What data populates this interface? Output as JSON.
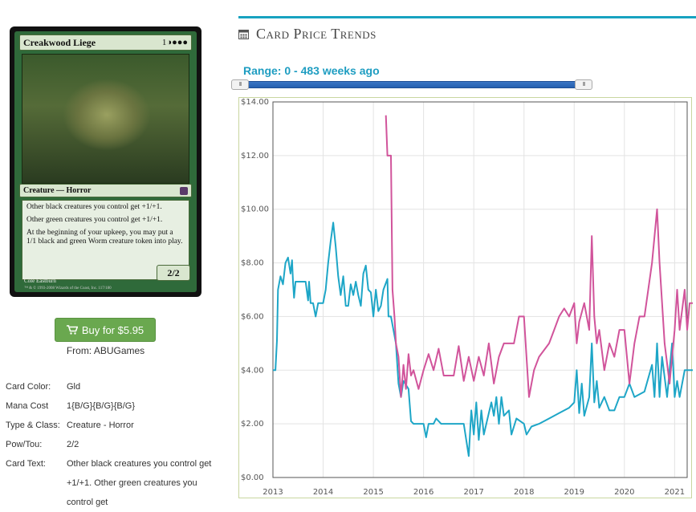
{
  "card": {
    "name": "Creakwood Liege",
    "mana_symbols": "1◑●●●",
    "type_line": "Creature — Horror",
    "rules": [
      "Other black creatures you control get +1/+1.",
      "Other green creatures you control get +1/+1.",
      "At the beginning of your upkeep, you may put a 1/1 black and green Worm creature token into play."
    ],
    "power_toughness": "2/2",
    "artist": "Cole Eastburn",
    "copyright": "™ & © 1993-2008 Wizards of the Coast, Inc. 117/180"
  },
  "buy": {
    "label": "Buy for $5.95",
    "icon": "cart-icon"
  },
  "from": {
    "prefix": "From:",
    "store": "ABUGames"
  },
  "details": [
    {
      "label": "Card Color:",
      "value": "Gld"
    },
    {
      "label": "Mana Cost",
      "value": "1{B/G}{B/G}{B/G}"
    },
    {
      "label": "Type & Class:",
      "value": "Creature - Horror"
    },
    {
      "label": "Pow/Tou:",
      "value": "2/2"
    },
    {
      "label": "Card Text:",
      "value": "Other black creatures you control get +1/+1. Other green creatures you control get"
    }
  ],
  "section": {
    "title": "Card Price Trends",
    "icon": "calendar-icon"
  },
  "range": {
    "label": "Range: 0 - 483 weeks ago",
    "start_weeks": 0,
    "end_weeks": 483
  },
  "chart_data": {
    "type": "line",
    "ylim": [
      0,
      14
    ],
    "y_ticks": [
      "$0.00",
      "$2.00",
      "$4.00",
      "$6.00",
      "$8.00",
      "$10.00",
      "$12.00",
      "$14.00"
    ],
    "x_ticks": [
      "2013",
      "2014",
      "2015",
      "2016",
      "2017",
      "2018",
      "2019",
      "2020",
      "2021"
    ],
    "colors": {
      "series_a": "#1ea6c7",
      "series_b": "#d1549b",
      "grid": "#e3e3e3"
    },
    "series": [
      {
        "color": "#1ea6c7",
        "points": [
          [
            2013.0,
            4.0
          ],
          [
            2013.05,
            4.0
          ],
          [
            2013.08,
            5.1
          ],
          [
            2013.1,
            7.0
          ],
          [
            2013.15,
            7.5
          ],
          [
            2013.2,
            7.2
          ],
          [
            2013.25,
            8.0
          ],
          [
            2013.3,
            8.2
          ],
          [
            2013.35,
            7.6
          ],
          [
            2013.38,
            8.1
          ],
          [
            2013.4,
            7.3
          ],
          [
            2013.42,
            6.7
          ],
          [
            2013.45,
            7.3
          ],
          [
            2013.55,
            7.3
          ],
          [
            2013.65,
            7.3
          ],
          [
            2013.7,
            6.6
          ],
          [
            2013.72,
            7.3
          ],
          [
            2013.75,
            6.5
          ],
          [
            2013.8,
            6.5
          ],
          [
            2013.85,
            6.0
          ],
          [
            2013.9,
            6.5
          ],
          [
            2014.0,
            6.5
          ],
          [
            2014.05,
            7.0
          ],
          [
            2014.1,
            8.0
          ],
          [
            2014.15,
            8.8
          ],
          [
            2014.2,
            9.5
          ],
          [
            2014.25,
            8.6
          ],
          [
            2014.3,
            7.5
          ],
          [
            2014.35,
            6.8
          ],
          [
            2014.4,
            7.5
          ],
          [
            2014.45,
            6.4
          ],
          [
            2014.5,
            6.4
          ],
          [
            2014.55,
            7.2
          ],
          [
            2014.6,
            6.8
          ],
          [
            2014.65,
            7.3
          ],
          [
            2014.7,
            6.8
          ],
          [
            2014.75,
            6.4
          ],
          [
            2014.8,
            7.6
          ],
          [
            2014.85,
            7.9
          ],
          [
            2014.9,
            7.0
          ],
          [
            2014.95,
            6.9
          ],
          [
            2015.0,
            6.0
          ],
          [
            2015.05,
            7.0
          ],
          [
            2015.1,
            6.2
          ],
          [
            2015.15,
            6.4
          ],
          [
            2015.2,
            7.0
          ],
          [
            2015.28,
            7.4
          ],
          [
            2015.3,
            6.0
          ],
          [
            2015.35,
            6.0
          ],
          [
            2015.4,
            5.5
          ],
          [
            2015.45,
            5.0
          ],
          [
            2015.5,
            3.5
          ],
          [
            2015.55,
            3.0
          ],
          [
            2015.6,
            3.6
          ],
          [
            2015.7,
            3.3
          ],
          [
            2015.75,
            2.1
          ],
          [
            2015.8,
            2.0
          ],
          [
            2015.9,
            2.0
          ],
          [
            2016.0,
            2.0
          ],
          [
            2016.05,
            1.5
          ],
          [
            2016.1,
            2.0
          ],
          [
            2016.2,
            2.0
          ],
          [
            2016.25,
            2.2
          ],
          [
            2016.35,
            2.0
          ],
          [
            2016.6,
            2.0
          ],
          [
            2016.8,
            2.0
          ],
          [
            2016.9,
            0.8
          ],
          [
            2016.95,
            2.5
          ],
          [
            2017.0,
            1.6
          ],
          [
            2017.05,
            2.8
          ],
          [
            2017.1,
            1.4
          ],
          [
            2017.15,
            2.5
          ],
          [
            2017.2,
            1.6
          ],
          [
            2017.3,
            2.4
          ],
          [
            2017.35,
            2.8
          ],
          [
            2017.4,
            2.3
          ],
          [
            2017.45,
            3.0
          ],
          [
            2017.5,
            2.0
          ],
          [
            2017.55,
            3.0
          ],
          [
            2017.6,
            2.3
          ],
          [
            2017.7,
            2.5
          ],
          [
            2017.75,
            1.6
          ],
          [
            2017.85,
            2.2
          ],
          [
            2018.0,
            2.0
          ],
          [
            2018.05,
            1.6
          ],
          [
            2018.15,
            1.9
          ],
          [
            2018.3,
            2.0
          ],
          [
            2018.5,
            2.2
          ],
          [
            2018.7,
            2.4
          ],
          [
            2018.9,
            2.6
          ],
          [
            2019.0,
            2.8
          ],
          [
            2019.05,
            4.0
          ],
          [
            2019.1,
            2.4
          ],
          [
            2019.15,
            3.5
          ],
          [
            2019.2,
            2.3
          ],
          [
            2019.3,
            3.0
          ],
          [
            2019.35,
            5.0
          ],
          [
            2019.4,
            2.8
          ],
          [
            2019.45,
            3.6
          ],
          [
            2019.5,
            2.6
          ],
          [
            2019.6,
            3.0
          ],
          [
            2019.7,
            2.5
          ],
          [
            2019.8,
            2.5
          ],
          [
            2019.9,
            3.0
          ],
          [
            2020.0,
            3.0
          ],
          [
            2020.1,
            3.5
          ],
          [
            2020.2,
            3.0
          ],
          [
            2020.4,
            3.2
          ],
          [
            2020.55,
            4.2
          ],
          [
            2020.6,
            3.0
          ],
          [
            2020.65,
            5.0
          ],
          [
            2020.7,
            3.0
          ],
          [
            2020.75,
            4.5
          ],
          [
            2020.85,
            3.0
          ],
          [
            2020.95,
            5.0
          ],
          [
            2021.0,
            3.0
          ],
          [
            2021.05,
            3.6
          ],
          [
            2021.1,
            3.0
          ],
          [
            2021.2,
            4.0
          ],
          [
            2021.4,
            4.0
          ]
        ]
      },
      {
        "color": "#d1549b",
        "points": [
          [
            2015.25,
            13.5
          ],
          [
            2015.28,
            12.0
          ],
          [
            2015.35,
            12.0
          ],
          [
            2015.38,
            7.0
          ],
          [
            2015.42,
            6.0
          ],
          [
            2015.45,
            5.0
          ],
          [
            2015.5,
            4.5
          ],
          [
            2015.55,
            3.0
          ],
          [
            2015.6,
            4.2
          ],
          [
            2015.65,
            3.3
          ],
          [
            2015.7,
            4.6
          ],
          [
            2015.75,
            3.8
          ],
          [
            2015.8,
            4.0
          ],
          [
            2015.9,
            3.3
          ],
          [
            2016.0,
            4.0
          ],
          [
            2016.1,
            4.6
          ],
          [
            2016.2,
            4.0
          ],
          [
            2016.3,
            4.8
          ],
          [
            2016.4,
            3.8
          ],
          [
            2016.6,
            3.8
          ],
          [
            2016.7,
            4.9
          ],
          [
            2016.8,
            3.6
          ],
          [
            2016.9,
            4.5
          ],
          [
            2017.0,
            3.6
          ],
          [
            2017.1,
            4.5
          ],
          [
            2017.2,
            3.8
          ],
          [
            2017.3,
            5.0
          ],
          [
            2017.4,
            3.5
          ],
          [
            2017.5,
            4.5
          ],
          [
            2017.6,
            5.0
          ],
          [
            2017.8,
            5.0
          ],
          [
            2017.9,
            6.0
          ],
          [
            2018.0,
            6.0
          ],
          [
            2018.1,
            3.0
          ],
          [
            2018.2,
            4.0
          ],
          [
            2018.3,
            4.5
          ],
          [
            2018.5,
            5.0
          ],
          [
            2018.6,
            5.5
          ],
          [
            2018.7,
            6.0
          ],
          [
            2018.8,
            6.3
          ],
          [
            2018.9,
            6.0
          ],
          [
            2019.0,
            6.5
          ],
          [
            2019.05,
            5.0
          ],
          [
            2019.1,
            5.8
          ],
          [
            2019.2,
            6.5
          ],
          [
            2019.3,
            5.5
          ],
          [
            2019.35,
            9.0
          ],
          [
            2019.4,
            6.0
          ],
          [
            2019.45,
            5.0
          ],
          [
            2019.5,
            5.5
          ],
          [
            2019.6,
            4.0
          ],
          [
            2019.7,
            5.0
          ],
          [
            2019.8,
            4.5
          ],
          [
            2019.9,
            5.5
          ],
          [
            2020.0,
            5.5
          ],
          [
            2020.1,
            3.5
          ],
          [
            2020.2,
            5.0
          ],
          [
            2020.3,
            6.0
          ],
          [
            2020.4,
            6.0
          ],
          [
            2020.55,
            8.0
          ],
          [
            2020.65,
            10.0
          ],
          [
            2020.7,
            8.0
          ],
          [
            2020.8,
            5.0
          ],
          [
            2020.9,
            3.5
          ],
          [
            2020.95,
            4.5
          ],
          [
            2021.0,
            5.5
          ],
          [
            2021.05,
            7.0
          ],
          [
            2021.1,
            5.5
          ],
          [
            2021.2,
            7.0
          ],
          [
            2021.25,
            5.5
          ],
          [
            2021.3,
            6.5
          ],
          [
            2021.4,
            6.5
          ]
        ]
      }
    ]
  }
}
